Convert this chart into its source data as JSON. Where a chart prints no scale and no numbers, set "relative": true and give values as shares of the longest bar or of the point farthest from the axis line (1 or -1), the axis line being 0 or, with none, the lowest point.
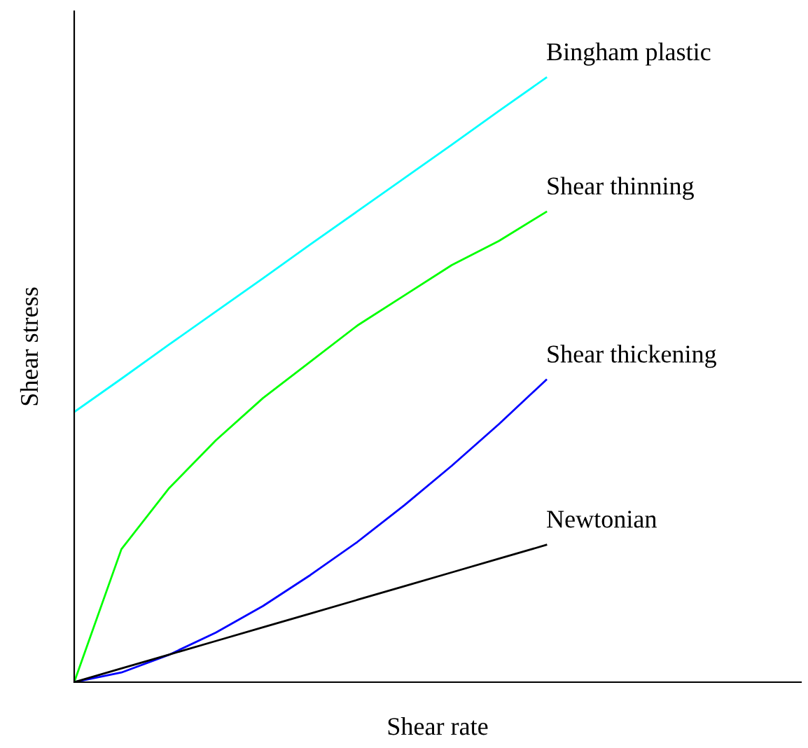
{
  "chart_data": {
    "type": "line",
    "relative": true,
    "xlabel": "Shear rate",
    "ylabel": "Shear stress",
    "legend": false,
    "categories": [
      null,
      null,
      null,
      null,
      null,
      null,
      null,
      null,
      null,
      null,
      null,
      null,
      null,
      null,
      null,
      null
    ],
    "series": [
      {
        "name": "Bingham plastic",
        "color": "#00ffff",
        "values": [
          0.447,
          0.502,
          0.558,
          0.613,
          0.668,
          0.724,
          0.779,
          0.834,
          0.889,
          0.945,
          1.0,
          null,
          null,
          null,
          null,
          null
        ]
      },
      {
        "name": "Shear thinning",
        "color": "#00ff00",
        "values": [
          0,
          0.22,
          0.32,
          0.4,
          0.47,
          0.53,
          0.59,
          0.64,
          0.69,
          0.73,
          0.778,
          null,
          null,
          null,
          null,
          null
        ]
      },
      {
        "name": "Shear thickening",
        "color": "#0000ff",
        "values": [
          0,
          0.016,
          0.045,
          0.082,
          0.126,
          0.177,
          0.232,
          0.293,
          0.358,
          0.427,
          0.5,
          null,
          null,
          null,
          null,
          null
        ]
      },
      {
        "name": "Newtonian",
        "color": "#000000",
        "values": [
          0,
          0.0227,
          0.0454,
          0.0681,
          0.0908,
          0.1135,
          0.1362,
          0.1589,
          0.1816,
          0.2043,
          0.227,
          null,
          null,
          null,
          null,
          null
        ]
      }
    ]
  }
}
